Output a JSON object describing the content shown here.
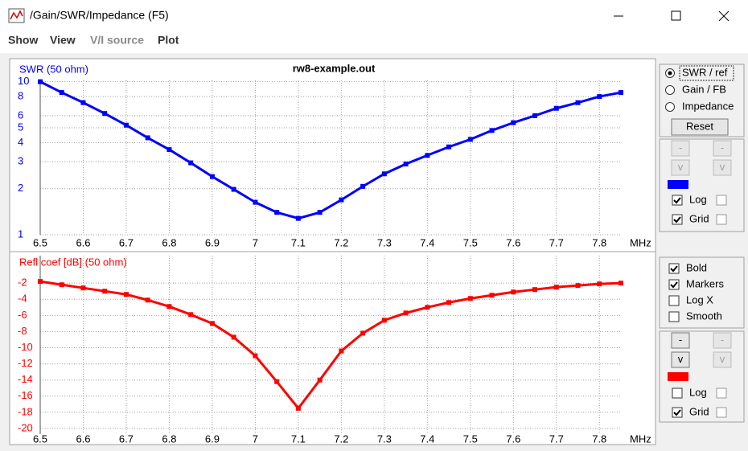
{
  "window": {
    "title": "/Gain/SWR/Impedance (F5)"
  },
  "menu": [
    {
      "label": "Show",
      "enabled": true
    },
    {
      "label": "View",
      "enabled": true
    },
    {
      "label": "V/I source",
      "enabled": false
    },
    {
      "label": "Plot",
      "enabled": true
    }
  ],
  "chart_data": [
    {
      "type": "line",
      "title": "rw8-example.out",
      "y_label": "SWR (50 ohm)",
      "x_label": "MHz",
      "log_y": true,
      "grid": true,
      "markers": true,
      "color": "#0000ff",
      "x": [
        6.5,
        6.55,
        6.6,
        6.65,
        6.7,
        6.75,
        6.8,
        6.85,
        6.9,
        6.95,
        7.0,
        7.05,
        7.1,
        7.15,
        7.2,
        7.25,
        7.3,
        7.35,
        7.4,
        7.45,
        7.5,
        7.55,
        7.6,
        7.65,
        7.7,
        7.75,
        7.8,
        7.85
      ],
      "values": [
        10,
        8.5,
        7.3,
        6.2,
        5.2,
        4.3,
        3.6,
        2.95,
        2.4,
        1.98,
        1.63,
        1.4,
        1.28,
        1.4,
        1.69,
        2.07,
        2.5,
        2.9,
        3.3,
        3.75,
        4.2,
        4.8,
        5.4,
        6.0,
        6.7,
        7.3,
        8.0,
        8.5
      ],
      "xlim": [
        6.5,
        7.85
      ],
      "xticks": [
        6.5,
        6.6,
        6.7,
        6.8,
        6.9,
        7,
        7.1,
        7.2,
        7.3,
        7.4,
        7.5,
        7.6,
        7.7,
        7.8
      ],
      "ylim": [
        1,
        10.2
      ],
      "yticks": [
        1,
        2,
        3,
        4,
        5,
        6,
        8,
        10
      ]
    },
    {
      "type": "line",
      "y_label": "Refl coef [dB] (50 ohm)",
      "x_label": "MHz",
      "log_y": false,
      "grid": true,
      "markers": true,
      "color": "#ff0000",
      "x": [
        6.5,
        6.55,
        6.6,
        6.65,
        6.7,
        6.75,
        6.8,
        6.85,
        6.9,
        6.95,
        7.0,
        7.05,
        7.1,
        7.15,
        7.2,
        7.25,
        7.3,
        7.35,
        7.4,
        7.45,
        7.5,
        7.55,
        7.6,
        7.65,
        7.7,
        7.75,
        7.8,
        7.85
      ],
      "values": [
        -1.8,
        -2.2,
        -2.6,
        -3.0,
        -3.4,
        -4.1,
        -4.9,
        -5.9,
        -7.0,
        -8.7,
        -11.0,
        -14.2,
        -17.5,
        -14.0,
        -10.4,
        -8.2,
        -6.6,
        -5.7,
        -5.0,
        -4.4,
        -3.9,
        -3.5,
        -3.1,
        -2.8,
        -2.5,
        -2.3,
        -2.1,
        -2.0
      ],
      "xlim": [
        6.5,
        7.85
      ],
      "xticks": [
        6.5,
        6.6,
        6.7,
        6.8,
        6.9,
        7,
        7.1,
        7.2,
        7.3,
        7.4,
        7.5,
        7.6,
        7.7,
        7.8
      ],
      "ylim": [
        -20.7,
        1.4
      ],
      "yticks": [
        -2,
        -4,
        -6,
        -8,
        -10,
        -12,
        -14,
        -16,
        -18,
        -20
      ]
    }
  ],
  "panel": {
    "modes": [
      {
        "label": "SWR / ref",
        "selected": true
      },
      {
        "label": "Gain / FB",
        "selected": false
      },
      {
        "label": "Impedance",
        "selected": false
      }
    ],
    "reset": "Reset",
    "upper_buttons": [
      {
        "label": "-",
        "enabled": false
      },
      {
        "label": "-",
        "enabled": false
      },
      {
        "label": "v",
        "enabled": false
      },
      {
        "label": "v",
        "enabled": false
      }
    ],
    "upper_checks": [
      {
        "label": "Log",
        "checked": true
      },
      {
        "label": "Grid",
        "checked": true
      }
    ],
    "options": [
      {
        "label": "Bold",
        "checked": true
      },
      {
        "label": "Markers",
        "checked": true
      },
      {
        "label": "Log X",
        "checked": false
      },
      {
        "label": "Smooth",
        "checked": false
      }
    ],
    "lower_buttons": [
      {
        "label": "-",
        "enabled": true
      },
      {
        "label": "-",
        "enabled": false
      },
      {
        "label": "v",
        "enabled": true
      },
      {
        "label": "v",
        "enabled": false
      }
    ],
    "lower_checks": [
      {
        "label": "Log",
        "checked": false
      },
      {
        "label": "Grid",
        "checked": true
      }
    ]
  }
}
